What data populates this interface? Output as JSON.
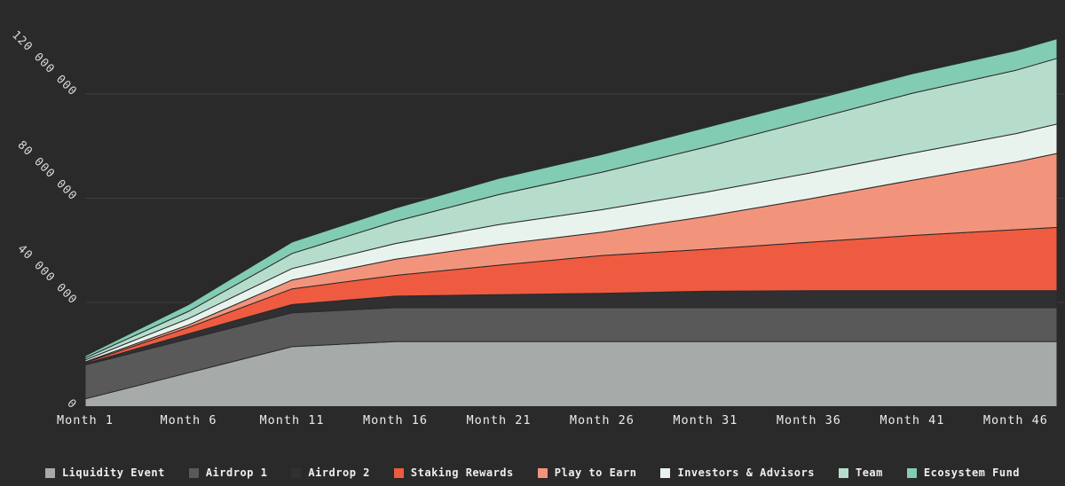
{
  "chart": {
    "background": "#2a2a2a",
    "grid_color": "#3e3e3e",
    "axis_text_color": "#d9d9d9",
    "legend_text_color": "#efefef"
  },
  "chart_data": {
    "type": "area",
    "stacked": true,
    "title": "",
    "xlabel": "",
    "ylabel": "",
    "grid": true,
    "legend_position": "bottom",
    "xlim": [
      1,
      48
    ],
    "ylim": [
      0,
      156000000
    ],
    "x_months": [
      1,
      6,
      11,
      16,
      21,
      26,
      31,
      36,
      41,
      46,
      48
    ],
    "x_tick_months": [
      1,
      6,
      11,
      16,
      21,
      26,
      31,
      36,
      41,
      46
    ],
    "x_tick_labels": [
      "Month 1",
      "Month 6",
      "Month 11",
      "Month 16",
      "Month 21",
      "Month 26",
      "Month 31",
      "Month 36",
      "Month 41",
      "Month 46"
    ],
    "y_ticks": [
      0,
      40000000,
      80000000,
      120000000
    ],
    "y_tick_labels": [
      "0",
      "40 000 000",
      "80 000 000",
      "120 000 000"
    ],
    "series": [
      {
        "name": "Liquidity Event",
        "color": "#a6aaa8",
        "values": [
          3000000,
          13000000,
          23000000,
          25000000,
          25000000,
          25000000,
          25000000,
          25000000,
          25000000,
          25000000,
          25000000
        ]
      },
      {
        "name": "Airdrop 1",
        "color": "#595959",
        "values": [
          13000000,
          13000000,
          13000000,
          13000000,
          13000000,
          13000000,
          13000000,
          13000000,
          13000000,
          13000000,
          13000000
        ]
      },
      {
        "name": "Airdrop 2",
        "color": "#303032",
        "values": [
          500000,
          2000000,
          3200000,
          4400000,
          5000000,
          5500000,
          6300000,
          6500000,
          6500000,
          6500000,
          6500000
        ]
      },
      {
        "name": "Staking Rewards",
        "color": "#ef5b40",
        "values": [
          400000,
          2400000,
          6000000,
          8000000,
          11300000,
          14500000,
          16100000,
          18600000,
          21200000,
          23400000,
          24300000
        ]
      },
      {
        "name": "Play to Earn",
        "color": "#f2947c",
        "values": [
          300000,
          1000000,
          3400000,
          6200000,
          7900000,
          9000000,
          12600000,
          16600000,
          21200000,
          26000000,
          28400000
        ]
      },
      {
        "name": "Investors & Advisors",
        "color": "#e8f3ee",
        "values": [
          700000,
          2400000,
          4400000,
          6000000,
          7700000,
          8600000,
          9300000,
          9900000,
          10400000,
          10900000,
          11300000
        ]
      },
      {
        "name": "Team",
        "color": "#b6ddcc",
        "values": [
          800000,
          2800000,
          5800000,
          8500000,
          11500000,
          14400000,
          17300000,
          20300000,
          23000000,
          24300000,
          25200000
        ]
      },
      {
        "name": "Ecosystem Fund",
        "color": "#82ccb3",
        "values": [
          800000,
          2600000,
          4400000,
          5100000,
          6200000,
          6800000,
          7500000,
          7500000,
          7500000,
          7500000,
          7500000
        ]
      }
    ]
  }
}
